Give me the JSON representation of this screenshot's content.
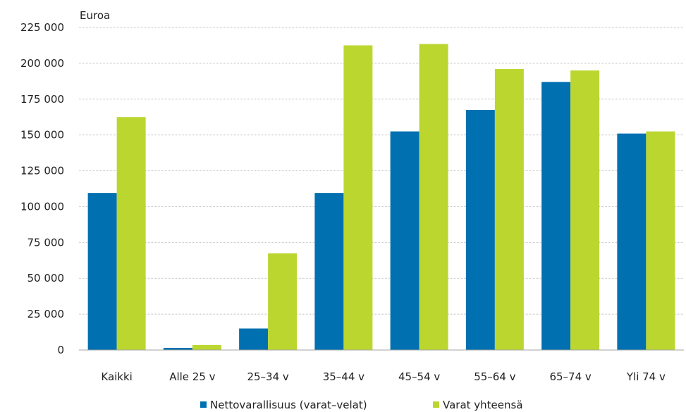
{
  "chart_data": {
    "type": "bar",
    "title": "",
    "xlabel": "",
    "ylabel": "Euroa",
    "ylim": [
      0,
      225000
    ],
    "yticks": [
      0,
      25000,
      50000,
      75000,
      100000,
      125000,
      150000,
      175000,
      200000,
      225000
    ],
    "ytick_labels": [
      "0",
      "25 000",
      "50 000",
      "75 000",
      "100 000",
      "125 000",
      "150 000",
      "175 000",
      "200 000",
      "225 000"
    ],
    "grid": true,
    "legend_position": "bottom",
    "categories": [
      "Kaikki",
      "Alle 25 v",
      "25–34 v",
      "35–44 v",
      "45–54 v",
      "55–64 v",
      "65–74 v",
      "Yli 74 v"
    ],
    "series": [
      {
        "name": "Nettovarallisuus (varat–velat)",
        "color": "#0070b0",
        "values": [
          109500,
          1500,
          15000,
          109500,
          152500,
          167500,
          187000,
          151000
        ]
      },
      {
        "name": "Varat yhteensä",
        "color": "#bcd630",
        "values": [
          162500,
          3500,
          67500,
          212500,
          213500,
          196000,
          195000,
          152500
        ]
      }
    ]
  }
}
